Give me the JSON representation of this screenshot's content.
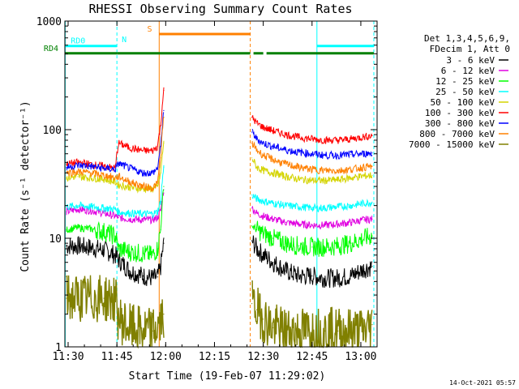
{
  "chart_data": {
    "type": "line",
    "title": "RHESSI Observing Summary Count Rates",
    "xlabel": "Start Time (19-Feb-07 11:29:02)",
    "ylabel": "Count Rate (s⁻¹ detector⁻¹)",
    "x_unit": "minutes after 11:29:02",
    "xlim": [
      0,
      96
    ],
    "ylim": [
      1,
      1000
    ],
    "y_scale": "log",
    "x_ticks": [
      {
        "x": 1,
        "label": "11:30"
      },
      {
        "x": 16,
        "label": "11:45"
      },
      {
        "x": 31,
        "label": "12:00"
      },
      {
        "x": 46,
        "label": "12:15"
      },
      {
        "x": 61,
        "label": "12:30"
      },
      {
        "x": 76,
        "label": "12:45"
      },
      {
        "x": 91,
        "label": "13:00"
      }
    ],
    "y_ticks": [
      {
        "y": 1,
        "label": "1"
      },
      {
        "y": 10,
        "label": "10"
      },
      {
        "y": 100,
        "label": "100"
      },
      {
        "y": 1000,
        "label": "1000"
      }
    ],
    "legend_header": [
      "Det 1,3,4,5,6,9,",
      "FDecim 1, Att 0"
    ],
    "legend_position": "right",
    "series": [
      {
        "name": "3 - 6 keV",
        "color": "#000000",
        "x": [
          0.5,
          4,
          8,
          12,
          15.5,
          16.5,
          20,
          24,
          27,
          28.5,
          29.5,
          30.4,
          57.5,
          59,
          61,
          64,
          68,
          72,
          76,
          80,
          84,
          88,
          92,
          94.5
        ],
        "y": [
          8.5,
          8.5,
          8.2,
          7.8,
          7.0,
          6.3,
          5.0,
          4.5,
          4.3,
          4.4,
          5.5,
          9.0,
          9.5,
          8.0,
          7.0,
          6.0,
          5.0,
          4.5,
          4.5,
          4.3,
          4.3,
          4.5,
          5.2,
          5.5
        ]
      },
      {
        "name": "6 - 12 keV",
        "color": "#e000e0",
        "x": [
          0.5,
          4,
          8,
          12,
          15.5,
          16.5,
          20,
          24,
          27,
          28.5,
          29.5,
          30.4,
          57.5,
          59,
          61,
          64,
          68,
          72,
          76,
          80,
          84,
          88,
          92,
          94.5
        ],
        "y": [
          17.5,
          18.5,
          18.0,
          17.0,
          16.0,
          15.5,
          15.0,
          14.8,
          14.8,
          15.5,
          18.0,
          28.0,
          19.0,
          17.0,
          16.0,
          15.0,
          14.0,
          13.5,
          13.2,
          13.2,
          13.5,
          14.0,
          14.8,
          15.0
        ]
      },
      {
        "name": "12 - 25 keV",
        "color": "#00ff00",
        "x": [
          0.5,
          4,
          8,
          12,
          15.5,
          16.5,
          20,
          24,
          27,
          28.5,
          29.5,
          30.4,
          57.5,
          59,
          61,
          64,
          68,
          72,
          76,
          80,
          84,
          88,
          92,
          94.5
        ],
        "y": [
          12.0,
          12.5,
          12.2,
          11.5,
          10.5,
          8.0,
          7.5,
          7.2,
          7.0,
          8.0,
          12.0,
          30.0,
          13.0,
          12.0,
          11.0,
          10.0,
          9.0,
          8.5,
          8.3,
          8.3,
          8.5,
          9.0,
          10.0,
          10.5
        ]
      },
      {
        "name": "25 - 50 keV",
        "color": "#00ffff",
        "x": [
          0.5,
          4,
          8,
          12,
          15.5,
          16.5,
          20,
          24,
          27,
          28.5,
          29.5,
          30.4,
          57.5,
          59,
          61,
          64,
          68,
          72,
          76,
          80,
          84,
          88,
          92,
          94.5
        ],
        "y": [
          19.5,
          20.0,
          19.5,
          19.0,
          18.5,
          17.5,
          17.0,
          16.8,
          16.8,
          17.5,
          22.0,
          45.0,
          25.0,
          23.0,
          22.0,
          21.0,
          20.0,
          19.5,
          19.0,
          19.0,
          19.5,
          20.0,
          21.0,
          21.5
        ]
      },
      {
        "name": "50 - 100 keV",
        "color": "#d4d400",
        "x": [
          0.5,
          4,
          8,
          12,
          15.5,
          16.5,
          20,
          24,
          27,
          28.5,
          29.5,
          30.4,
          57.5,
          59,
          61,
          64,
          68,
          72,
          76,
          80,
          84,
          88,
          92,
          94.5
        ],
        "y": [
          36.0,
          37.0,
          36.0,
          35.0,
          33.0,
          31.0,
          29.5,
          28.5,
          28.5,
          30.0,
          40.0,
          75.0,
          55.0,
          45.0,
          42.0,
          40.0,
          37.0,
          35.0,
          34.0,
          34.0,
          34.5,
          36.0,
          37.5,
          38.0
        ]
      },
      {
        "name": "100 - 300 keV",
        "color": "#ff0000",
        "x": [
          0.5,
          4,
          8,
          12,
          15.5,
          16.5,
          20,
          24,
          27,
          28.5,
          29.5,
          30.4,
          57.5,
          59,
          61,
          64,
          68,
          72,
          76,
          80,
          84,
          88,
          92,
          94.5
        ],
        "y": [
          48.0,
          50.0,
          48.0,
          46.0,
          44.0,
          75.0,
          68.0,
          64.0,
          64.0,
          70.0,
          110.0,
          230.0,
          130.0,
          115.0,
          105.0,
          98.0,
          90.0,
          85.0,
          82.0,
          80.0,
          80.0,
          82.0,
          86.0,
          88.0
        ]
      },
      {
        "name": "300 - 800 keV",
        "color": "#0000ff",
        "x": [
          0.5,
          4,
          8,
          12,
          15.5,
          16.5,
          20,
          24,
          27,
          28.5,
          29.5,
          30.4,
          57.5,
          59,
          61,
          64,
          68,
          72,
          76,
          80,
          84,
          88,
          92,
          94.5
        ],
        "y": [
          45.0,
          47.0,
          46.0,
          44.0,
          43.0,
          49.0,
          44.0,
          40.0,
          40.0,
          44.0,
          70.0,
          150.0,
          95.0,
          82.0,
          75.0,
          70.0,
          65.0,
          62.0,
          60.0,
          58.0,
          58.0,
          59.0,
          60.0,
          61.0
        ]
      },
      {
        "name": "800 - 7000 keV",
        "color": "#ff8000",
        "x": [
          0.5,
          4,
          8,
          12,
          15.5,
          16.5,
          20,
          24,
          27,
          28.5,
          29.5,
          30.4,
          57.5,
          59,
          61,
          64,
          68,
          72,
          76,
          80,
          84,
          88,
          92,
          94.5
        ],
        "y": [
          40.0,
          41.0,
          40.0,
          38.0,
          36.0,
          37.0,
          33.0,
          30.0,
          29.0,
          32.0,
          55.0,
          130.0,
          75.0,
          65.0,
          58.0,
          53.0,
          48.0,
          45.0,
          43.0,
          42.0,
          42.0,
          43.0,
          45.0,
          46.0
        ]
      },
      {
        "name": "7000 - 15000 keV",
        "color": "#808000",
        "x": [
          0.5,
          4,
          8,
          12,
          15.5,
          16.5,
          20,
          24,
          27,
          28.5,
          29.5,
          30.4,
          57.5,
          59,
          61,
          64,
          68,
          72,
          76,
          80,
          84,
          88,
          92,
          94.5
        ],
        "y": [
          2.8,
          2.8,
          2.8,
          2.8,
          2.7,
          1.8,
          1.5,
          1.4,
          1.4,
          1.5,
          1.7,
          2.0,
          2.5,
          2.2,
          1.8,
          1.5,
          1.4,
          1.4,
          1.4,
          1.4,
          1.4,
          1.4,
          1.4,
          1.6
        ]
      }
    ],
    "flags": [
      {
        "label": "RD0",
        "color": "#00ffff",
        "y": 590,
        "segments": [
          [
            0,
            16
          ],
          [
            77.5,
            95
          ]
        ],
        "label_x": 1.8
      },
      {
        "label": "RD4",
        "color": "#008000",
        "y": 505,
        "segments": [
          [
            0,
            16
          ],
          [
            16,
            57
          ],
          [
            58,
            61
          ],
          [
            62,
            95
          ]
        ],
        "label_x": -6.5
      },
      {
        "label": "N",
        "color": "#00ffff",
        "y": 610,
        "segments": [],
        "label_x": 17.5
      },
      {
        "label": "S",
        "color": "#ff8000",
        "y": 760,
        "segments": [
          [
            29,
            57
          ]
        ],
        "label_x": 25.3
      }
    ],
    "event_lines": [
      {
        "x": 0.1,
        "color": "#00ffff",
        "style": "solid"
      },
      {
        "x": 16,
        "color": "#00ffff",
        "style": "dashed"
      },
      {
        "x": 29,
        "color": "#ff8000",
        "style": "solid"
      },
      {
        "x": 57,
        "color": "#ff8000",
        "style": "dashed"
      },
      {
        "x": 77.5,
        "color": "#00ffff",
        "style": "solid"
      },
      {
        "x": 95,
        "color": "#00ffff",
        "style": "dashed"
      }
    ],
    "data_gap": [
      30.5,
      57.5
    ]
  },
  "footer": {
    "timestamp": "14-Oct-2021 05:57"
  }
}
